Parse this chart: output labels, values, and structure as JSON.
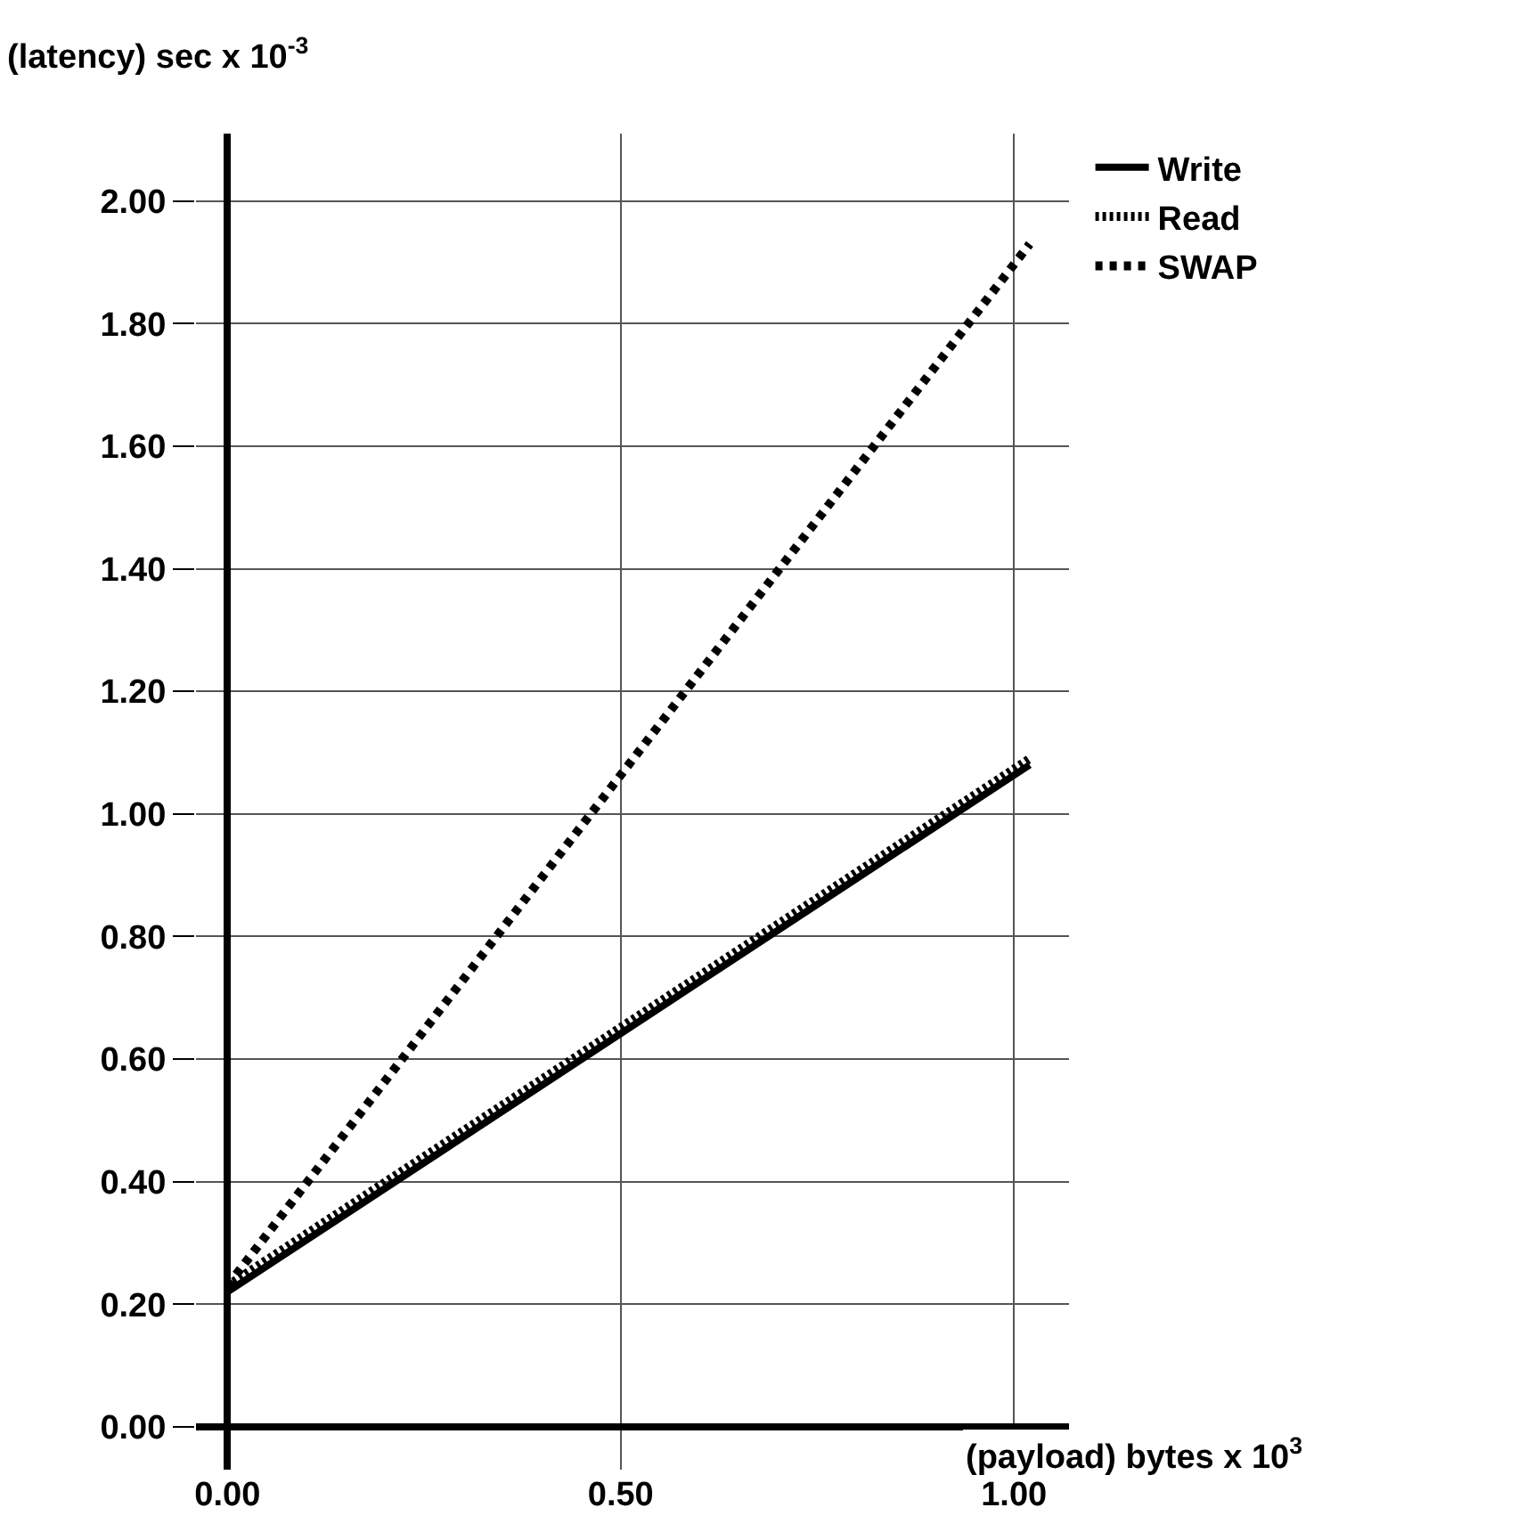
{
  "chart_data": {
    "type": "line",
    "xlabel": "(payload) bytes x 10$^{3}$",
    "ylabel": "(latency) sec x 10$^{-3}$",
    "series": [
      {
        "name": "Write",
        "color": "#000000",
        "line_style": "solid",
        "values": [
          0.22,
          1.08
        ]
      },
      {
        "name": "Read",
        "color": "#000000",
        "line_style": "dotted",
        "values": [
          0.23,
          1.09
        ]
      },
      {
        "name": "SWAP",
        "color": "#000000",
        "line_style": "dashed",
        "values": [
          0.23,
          1.93
        ]
      }
    ],
    "x": [
      0,
      1.02
    ],
    "xlim": [
      -0.04,
      1.07
    ],
    "ylim": [
      -0.07,
      2.11
    ],
    "xticks": [
      {
        "value": 0,
        "label": "0.00"
      },
      {
        "value": 0.5,
        "label": "0.50"
      },
      {
        "value": 1,
        "label": "1.00"
      }
    ],
    "yticks": [
      {
        "value": 0,
        "label": "0.00"
      },
      {
        "value": 0.2,
        "label": "0.20"
      },
      {
        "value": 0.4,
        "label": "0.40"
      },
      {
        "value": 0.6,
        "label": "0.60"
      },
      {
        "value": 0.8,
        "label": "0.80"
      },
      {
        "value": 1,
        "label": "1.00"
      },
      {
        "value": 1.2,
        "label": "1.20"
      },
      {
        "value": 1.4,
        "label": "1.40"
      },
      {
        "value": 1.6,
        "label": "1.60"
      },
      {
        "value": 1.8,
        "label": "1.80"
      },
      {
        "value": 2,
        "label": "2.00"
      }
    ],
    "grid": true,
    "legend": "top right",
    "marker": "none"
  }
}
